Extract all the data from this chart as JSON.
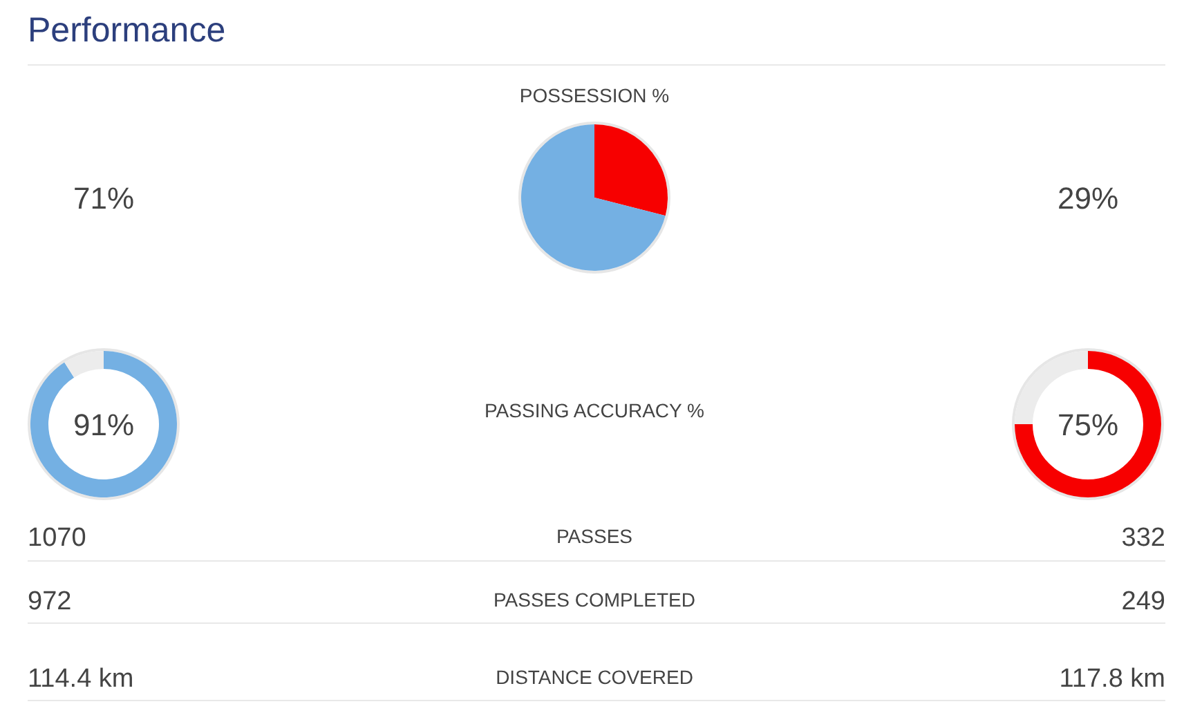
{
  "chart_data": [
    {
      "type": "other",
      "title": "Performance"
    },
    {
      "type": "pie",
      "title": "POSSESSION %",
      "categories": [
        null,
        null
      ],
      "values": [
        29,
        71
      ],
      "colors": [
        "#f70000",
        "#74b0e3"
      ],
      "annotations": [
        "71%",
        "29%"
      ]
    },
    {
      "type": "donut",
      "categories": [
        null,
        null
      ],
      "values": [
        91,
        9
      ],
      "colors": [
        "#74b0e3",
        "#ececec"
      ],
      "value_labels": [
        "91%",
        null
      ]
    },
    {
      "type": "other",
      "title": "PASSING ACCURACY %"
    },
    {
      "type": "donut",
      "categories": [
        null,
        null
      ],
      "values": [
        75,
        25
      ],
      "colors": [
        "#f70000",
        "#ececec"
      ],
      "value_labels": [
        "75%",
        null
      ]
    },
    {
      "type": "other",
      "annotations": [
        "1070",
        "PASSES",
        "332",
        "972",
        "PASSES COMPLETED",
        "249",
        "114.4 km",
        "DISTANCE COVERED",
        "117.8 km"
      ]
    }
  ]
}
